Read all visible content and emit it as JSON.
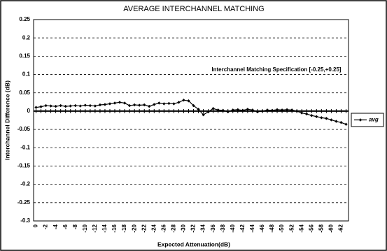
{
  "chart_data": {
    "type": "line",
    "title": "AVERAGE INTERCHANNEL MATCHING",
    "x_label": "Expected Attenuation(dB)",
    "y_label": "Interchannel Difference (dB)",
    "annotation": "Interchannel Matching Specification [-0.25,+0.25]",
    "categories": [
      "0",
      null,
      "-2",
      null,
      "-4",
      null,
      "-6",
      null,
      "-8",
      null,
      "-10",
      null,
      "-12",
      null,
      "-14",
      null,
      "-16",
      null,
      "-18",
      null,
      "-20",
      null,
      "-22",
      null,
      "-24",
      null,
      "-26",
      null,
      "-28",
      null,
      "-30",
      null,
      "-32",
      null,
      "-34",
      null,
      "-36",
      null,
      "-38",
      null,
      "-40",
      null,
      "-42",
      null,
      "-44",
      null,
      "-46",
      null,
      "-48",
      null,
      "-50",
      null,
      "-52",
      null,
      "-54",
      null,
      "-56",
      null,
      "-58",
      null,
      "-60",
      null,
      "-62",
      null
    ],
    "series": [
      {
        "name": "avg",
        "color": "#000000",
        "values": [
          0.01,
          0.012,
          0.015,
          0.014,
          0.013,
          0.015,
          0.013,
          0.014,
          0.015,
          0.014,
          0.016,
          0.015,
          0.014,
          0.017,
          0.018,
          0.02,
          0.022,
          0.024,
          0.022,
          0.015,
          0.017,
          0.016,
          0.017,
          0.013,
          0.018,
          0.022,
          0.02,
          0.021,
          0.02,
          0.024,
          0.03,
          0.028,
          0.015,
          0.005,
          -0.01,
          -0.002,
          0.007,
          0.003,
          0.002,
          -0.002,
          0.003,
          0.004,
          0.002,
          0.005,
          0.003,
          -0.002,
          0.0,
          0.003,
          0.002,
          0.004,
          0.003,
          0.004,
          0.003,
          0.0,
          -0.005,
          -0.008,
          -0.012,
          -0.015,
          -0.018,
          -0.02,
          -0.024,
          -0.028,
          -0.031,
          -0.036
        ]
      }
    ],
    "ylim": [
      -0.3,
      0.25
    ],
    "yticks": [
      0.25,
      0.2,
      0.15,
      0.1,
      0.05,
      0,
      -0.05,
      -0.1,
      -0.15,
      -0.2,
      -0.25,
      -0.3
    ],
    "grid": true,
    "legend": "right"
  }
}
